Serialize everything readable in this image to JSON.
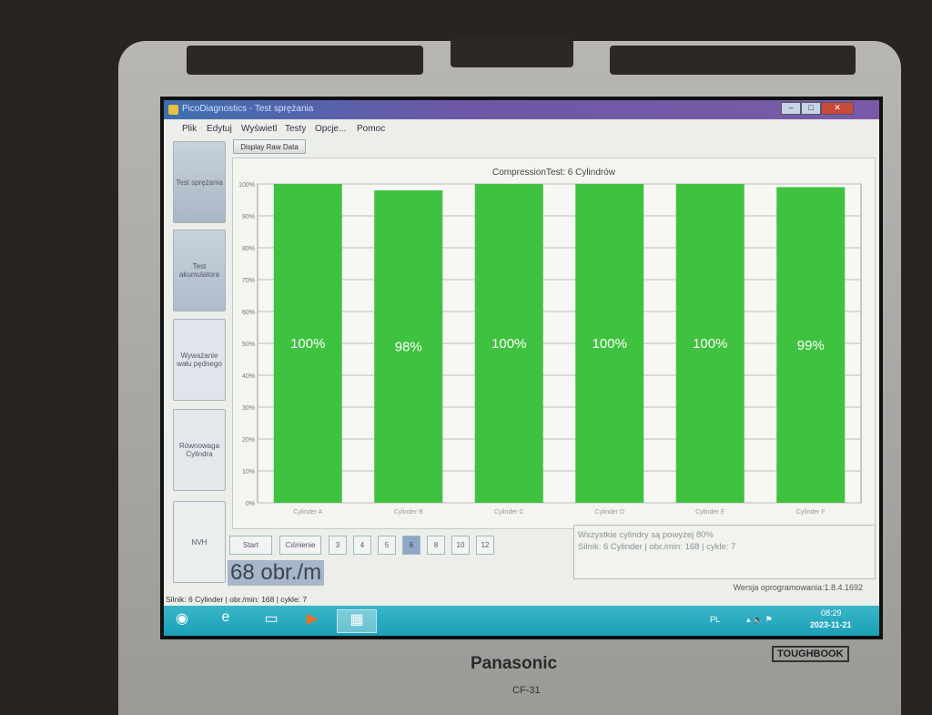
{
  "device": {
    "brand": "Panasonic",
    "badge": "TOUGHBOOK",
    "model": "CF-31"
  },
  "window": {
    "title": "PicoDiagnostics - Test sprężania",
    "controls": [
      "minimize",
      "maximize",
      "close"
    ]
  },
  "menu": [
    "Plik",
    "Edytuj",
    "Wyświetl",
    "Testy",
    "Opcje...",
    "Pomoc"
  ],
  "toolbar": {
    "raw_data": "Display Raw Data"
  },
  "sidebar": [
    {
      "label": "Test sprężania"
    },
    {
      "label": "Test akumulatora"
    },
    {
      "label": "Wyważanie wału pędnego"
    },
    {
      "label": "Równowaga Cylindra"
    },
    {
      "label": "NVH"
    }
  ],
  "chart_data": {
    "type": "bar",
    "title": "CompressionTest: 6 Cylindrów",
    "categories": [
      "Cylinder A",
      "Cylinder B",
      "Cylinder C",
      "Cylinder D",
      "Cylinder E",
      "Cylinder F"
    ],
    "values": [
      100,
      98,
      100,
      100,
      100,
      99
    ],
    "data_labels": [
      "100%",
      "98%",
      "100%",
      "100%",
      "100%",
      "99%"
    ],
    "yticks": [
      "0%",
      "10%",
      "20%",
      "30%",
      "40%",
      "50%",
      "60%",
      "70%",
      "80%",
      "90%",
      "100%"
    ],
    "ylim": [
      0,
      100
    ],
    "grid": true,
    "bar_color": "#3fc23f"
  },
  "controls": {
    "start": "Start",
    "canienie": "Ciśnienie",
    "cylinder_counts": [
      "3",
      "4",
      "5",
      "6",
      "8",
      "10",
      "12"
    ],
    "selected": "6"
  },
  "rpm_display": "68 obr./m",
  "messages": [
    "Wszystkie cylindry są powyżej 80%",
    "Silnik: 6 Cylinder | obr./min: 168 | cykle: 7"
  ],
  "version": "Wersja oprogramowania:1.8.4.1692",
  "status_bar": "Silnik: 6 Cylinder | obr./min: 168 | cykle: 7",
  "taskbar": {
    "lang": "PL",
    "time": "08:29",
    "date": "2023-11-21"
  }
}
